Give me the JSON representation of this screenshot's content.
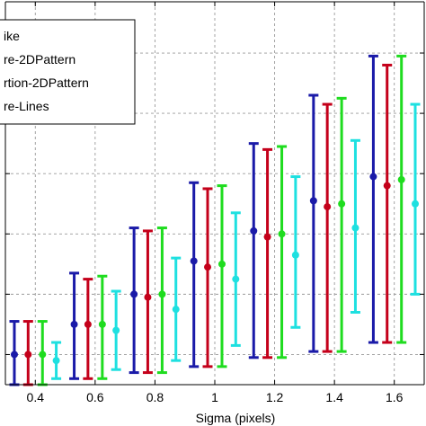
{
  "chart_data": {
    "type": "errorbar",
    "xlabel": "Sigma (pixels)",
    "xlim": [
      0.3,
      1.7
    ],
    "ylim": [
      -0.5,
      12.2
    ],
    "x_ticks": [
      0.4,
      0.6,
      0.8,
      1,
      1.2,
      1.4,
      1.6
    ],
    "x_tick_labels": [
      "0.4",
      "0.6",
      "0.8",
      "1",
      "1.2",
      "1.4",
      "1.6"
    ],
    "y_gridlines": [
      0.5,
      2.5,
      4.5,
      6.5,
      8.5,
      10.5
    ],
    "grid": true,
    "legend_placement": "top-left",
    "series": [
      {
        "name": "ike",
        "color": "#1a1aa8",
        "x": [
          0.4,
          0.6,
          0.8,
          1.0,
          1.2,
          1.4,
          1.6
        ],
        "mean": [
          0.5,
          1.5,
          2.5,
          3.6,
          4.6,
          5.6,
          6.4
        ],
        "low": [
          -0.5,
          -0.3,
          -0.1,
          0.1,
          0.4,
          0.6,
          0.9
        ],
        "high": [
          1.6,
          3.2,
          4.7,
          6.2,
          7.5,
          9.1,
          10.4
        ]
      },
      {
        "name": "re-2DPattern",
        "color": "#c4001a",
        "x": [
          0.4,
          0.6,
          0.8,
          1.0,
          1.2,
          1.4,
          1.6
        ],
        "mean": [
          0.5,
          1.5,
          2.4,
          3.4,
          4.4,
          5.4,
          6.1
        ],
        "low": [
          -0.5,
          -0.3,
          -0.1,
          0.1,
          0.4,
          0.6,
          0.9
        ],
        "high": [
          1.6,
          3.0,
          4.6,
          6.0,
          7.3,
          8.8,
          10.1
        ]
      },
      {
        "name": "rtion-2DPattern",
        "color": "#1fdc1f",
        "x": [
          0.4,
          0.6,
          0.8,
          1.0,
          1.2,
          1.4,
          1.6
        ],
        "mean": [
          0.5,
          1.5,
          2.5,
          3.5,
          4.5,
          5.5,
          6.3
        ],
        "low": [
          -0.5,
          -0.3,
          -0.1,
          0.1,
          0.4,
          0.6,
          0.9
        ],
        "high": [
          1.6,
          3.1,
          4.7,
          6.1,
          7.4,
          9.0,
          10.4
        ]
      },
      {
        "name": "re-Lines",
        "color": "#1ee0e0",
        "x": [
          0.4,
          0.6,
          0.8,
          1.0,
          1.2,
          1.4,
          1.6
        ],
        "mean": [
          0.3,
          1.3,
          2.0,
          3.0,
          3.8,
          4.7,
          5.5
        ],
        "low": [
          -0.3,
          0.0,
          0.3,
          0.8,
          1.4,
          1.9,
          2.5
        ],
        "high": [
          0.9,
          2.6,
          3.7,
          5.2,
          6.4,
          7.6,
          8.8
        ]
      }
    ]
  }
}
